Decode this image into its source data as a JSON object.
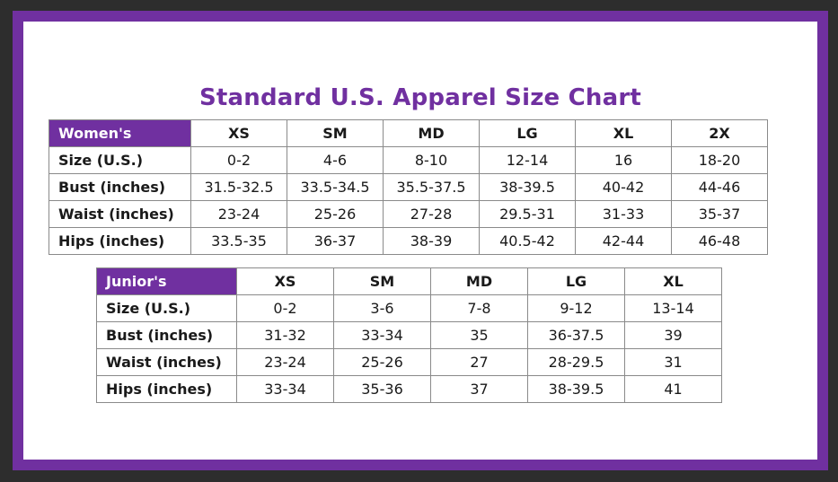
{
  "title": "Standard U.S. Apparel Size Chart",
  "colors": {
    "accent": "#7030a0",
    "background": "#ffffff",
    "outer": "#2d2d2d"
  },
  "womens": {
    "label": "Women's",
    "sizes": [
      "XS",
      "SM",
      "MD",
      "LG",
      "XL",
      "2X"
    ],
    "rows": [
      {
        "label": "Size (U.S.)",
        "values": [
          "0-2",
          "4-6",
          "8-10",
          "12-14",
          "16",
          "18-20"
        ]
      },
      {
        "label": "Bust (inches)",
        "values": [
          "31.5-32.5",
          "33.5-34.5",
          "35.5-37.5",
          "38-39.5",
          "40-42",
          "44-46"
        ]
      },
      {
        "label": "Waist (inches)",
        "values": [
          "23-24",
          "25-26",
          "27-28",
          "29.5-31",
          "31-33",
          "35-37"
        ]
      },
      {
        "label": "Hips (inches)",
        "values": [
          "33.5-35",
          "36-37",
          "38-39",
          "40.5-42",
          "42-44",
          "46-48"
        ]
      }
    ]
  },
  "juniors": {
    "label": "Junior's",
    "sizes": [
      "XS",
      "SM",
      "MD",
      "LG",
      "XL"
    ],
    "rows": [
      {
        "label": "Size (U.S.)",
        "values": [
          "0-2",
          "3-6",
          "7-8",
          "9-12",
          "13-14"
        ]
      },
      {
        "label": "Bust (inches)",
        "values": [
          "31-32",
          "33-34",
          "35",
          "36-37.5",
          "39"
        ]
      },
      {
        "label": "Waist (inches)",
        "values": [
          "23-24",
          "25-26",
          "27",
          "28-29.5",
          "31"
        ]
      },
      {
        "label": "Hips (inches)",
        "values": [
          "33-34",
          "35-36",
          "37",
          "38-39.5",
          "41"
        ]
      }
    ]
  }
}
